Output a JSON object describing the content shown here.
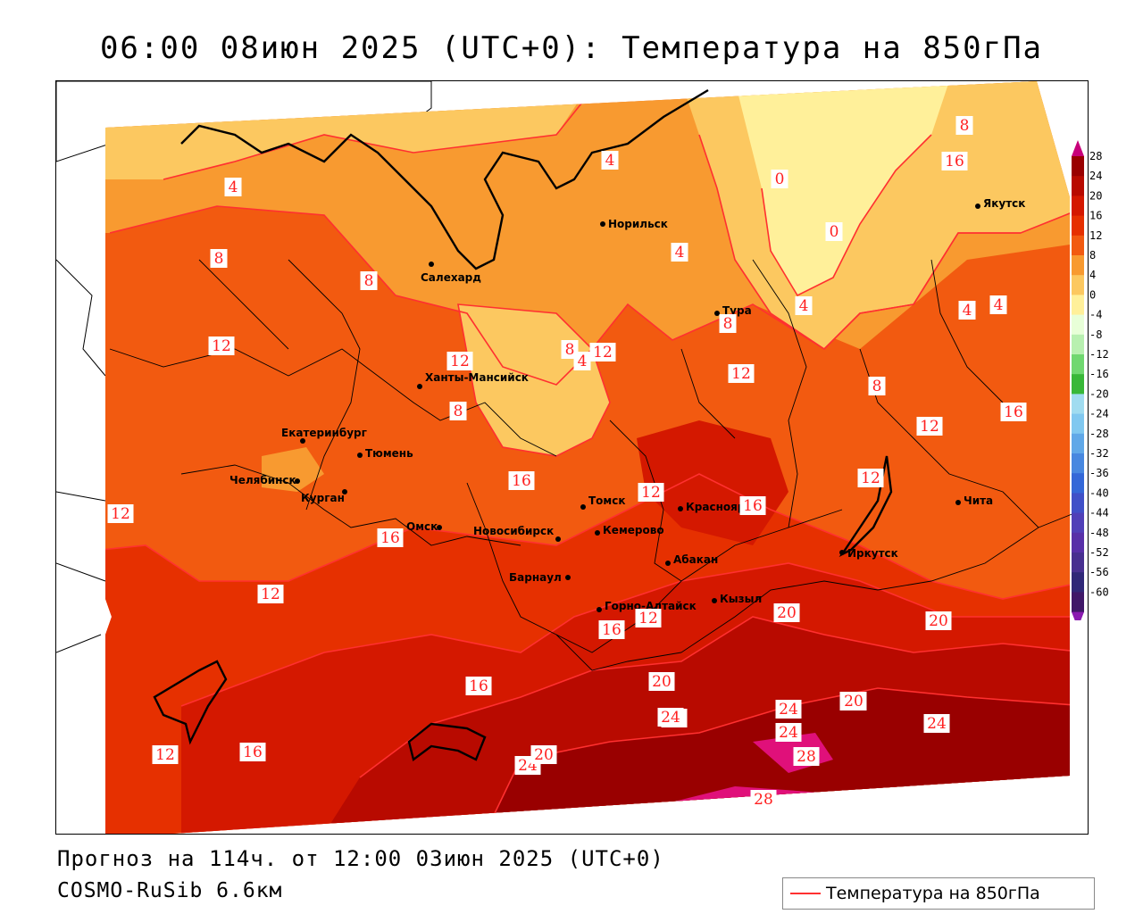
{
  "title": "06:00 08июн 2025 (UTC+0): Температура на 850гПа",
  "forecast_line": "Прогноз на 114ч. от 12:00 03июн 2025 (UTC+0)",
  "model_line": "COSMO-RuSib 6.6км",
  "legend": {
    "label": "Температура на 850гПа",
    "line_color": "#ff3030"
  },
  "colorbar": {
    "labels": [
      "28",
      "24",
      "20",
      "16",
      "12",
      "8",
      "4",
      "0",
      "-4",
      "-8",
      "-12",
      "-16",
      "-20",
      "-24",
      "-28",
      "-32",
      "-36",
      "-40",
      "-44",
      "-48",
      "-52",
      "-56",
      "-60"
    ],
    "colors": [
      "#990000",
      "#b80a00",
      "#d41800",
      "#e63000",
      "#f25a10",
      "#f89a30",
      "#fcc860",
      "#fff09a",
      "#e8ffd8",
      "#b8f0b0",
      "#70d870",
      "#38b838",
      "#a0dcf0",
      "#80c8f0",
      "#60a8e8",
      "#4888e0",
      "#3468d8",
      "#4050c8",
      "#5040b8",
      "#5830a8",
      "#483090",
      "#302878",
      "#401868"
    ],
    "top_color": "#c8007a",
    "bottom_color": "#8a1ab0"
  },
  "cities": [
    {
      "name": "Норильск"
    },
    {
      "name": "Салехард"
    },
    {
      "name": "Тура"
    },
    {
      "name": "Якутск"
    },
    {
      "name": "Ханты-Мансийск"
    },
    {
      "name": "Екатеринбург"
    },
    {
      "name": "Тюмень"
    },
    {
      "name": "Челябинск"
    },
    {
      "name": "Курган"
    },
    {
      "name": "Омск"
    },
    {
      "name": "Новосибирск"
    },
    {
      "name": "Томск"
    },
    {
      "name": "Кемерово"
    },
    {
      "name": "Красноярск"
    },
    {
      "name": "Абакан"
    },
    {
      "name": "Барнаул"
    },
    {
      "name": "Горно-Алтайск"
    },
    {
      "name": "Кызыл"
    },
    {
      "name": "Иркутск"
    },
    {
      "name": "Чита"
    }
  ],
  "isotherm_labels": [
    "4",
    "4",
    "8",
    "8",
    "12",
    "12",
    "8",
    "4",
    "12",
    "8",
    "4",
    "0",
    "0",
    "4",
    "8",
    "8",
    "4",
    "4",
    "8",
    "12",
    "12",
    "12",
    "8",
    "16",
    "16",
    "12",
    "16",
    "16",
    "16",
    "12",
    "12",
    "12",
    "16",
    "20",
    "20",
    "16",
    "20",
    "20",
    "24",
    "24",
    "24",
    "24",
    "20",
    "28",
    "28",
    "12",
    "16",
    "20",
    "24",
    "20"
  ]
}
